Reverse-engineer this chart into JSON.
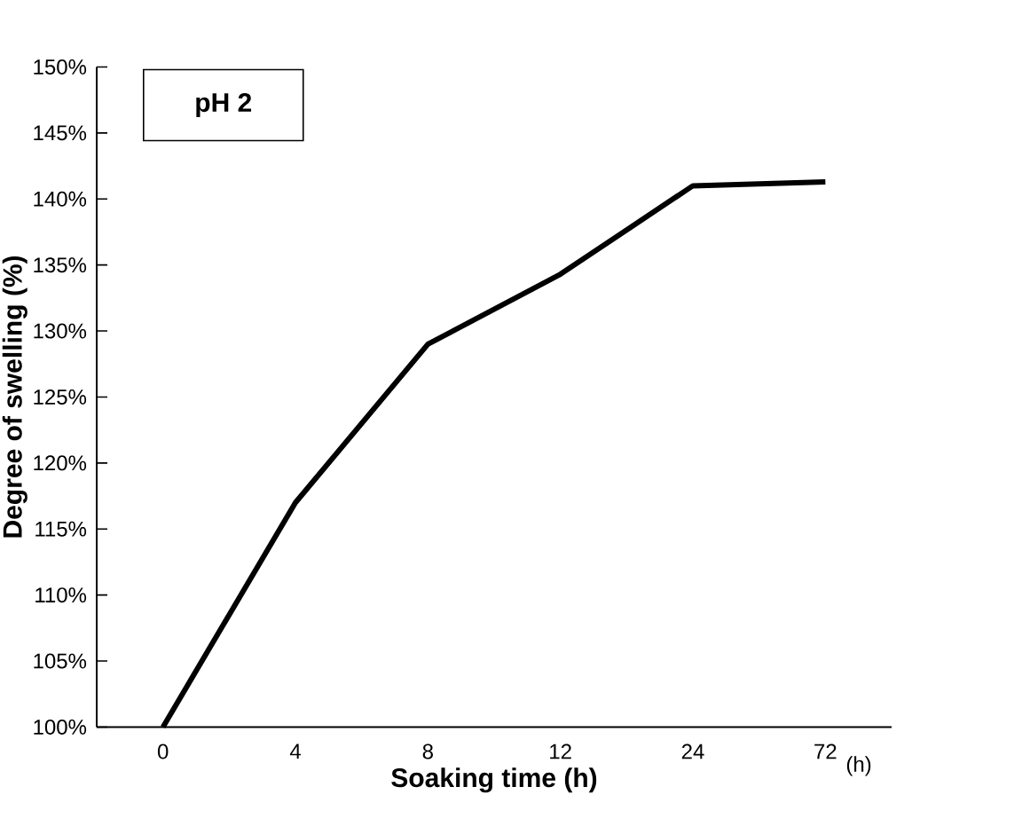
{
  "chart_data": {
    "type": "line",
    "title": "pH 2",
    "xlabel": "Soaking time (h)",
    "ylabel": "Degree of swelling (%)",
    "categories": [
      "0",
      "4",
      "8",
      "12",
      "24",
      "72"
    ],
    "series": [
      {
        "color": "#000000",
        "values": [
          100,
          117,
          129,
          134.3,
          141,
          141.3
        ]
      }
    ],
    "ylim": [
      100,
      150
    ],
    "yticks": [
      {
        "value": 100,
        "label": "100%"
      },
      {
        "value": 105,
        "label": "105%"
      },
      {
        "value": 110,
        "label": "110%"
      },
      {
        "value": 115,
        "label": "115%"
      },
      {
        "value": 120,
        "label": "120%"
      },
      {
        "value": 125,
        "label": "125%"
      },
      {
        "value": 130,
        "label": "130%"
      },
      {
        "value": 135,
        "label": "135%"
      },
      {
        "value": 140,
        "label": "140%"
      },
      {
        "value": 145,
        "label": "145%"
      },
      {
        "value": 150,
        "label": "150%"
      }
    ],
    "marker": "none",
    "line_style": "solid",
    "annotations": [
      "(h)"
    ]
  }
}
